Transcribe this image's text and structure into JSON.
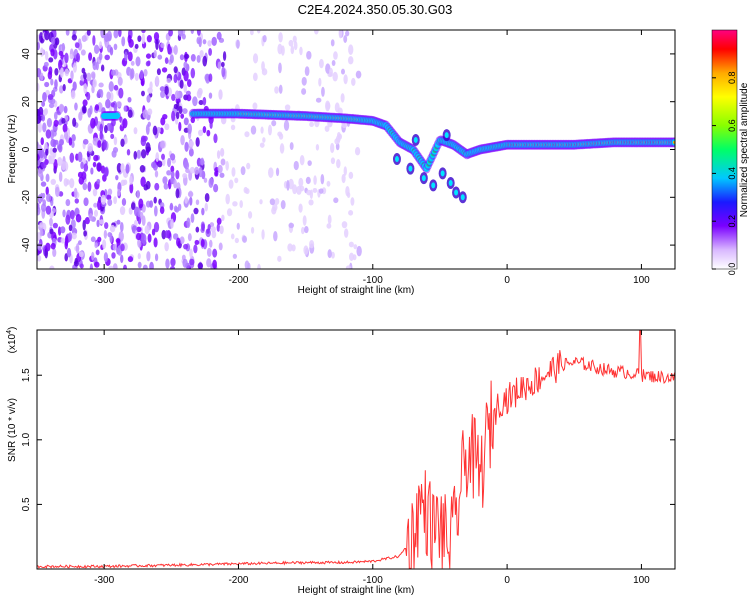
{
  "title": "C2E4.2024.350.05.30.G03",
  "chart_data": [
    {
      "type": "heatmap",
      "xlabel": "Height of straight line (km)",
      "ylabel": "Frequency (Hz)",
      "xlim": [
        -350,
        125
      ],
      "ylim": [
        -50,
        50
      ],
      "xticks": [
        -300,
        -200,
        -100,
        0,
        100
      ],
      "yticks": [
        -40,
        -20,
        0,
        20,
        40
      ],
      "colorbar": {
        "label": "Normalized spectral amplitude",
        "range": [
          0,
          1
        ],
        "ticks": [
          "0.0",
          "0.2",
          "0.4",
          "0.6",
          "0.8"
        ],
        "colors": [
          "#ffffff",
          "#b98cff",
          "#6a00ff",
          "#0033ff",
          "#00e5ff",
          "#00ff66",
          "#88ff00",
          "#ffff00",
          "#ffaa00",
          "#ff0000",
          "#ff0080"
        ]
      },
      "signal_track": {
        "x": [
          -300,
          -230,
          -200,
          -150,
          -120,
          -100,
          -90,
          -80,
          -70,
          -60,
          -50,
          -40,
          -30,
          -20,
          -10,
          0,
          20,
          50,
          80,
          100,
          125
        ],
        "y": [
          14,
          15,
          15,
          14,
          13,
          12,
          10,
          3,
          0,
          -8,
          4,
          2,
          -2,
          0,
          1,
          2,
          2,
          2,
          3,
          3,
          3
        ]
      },
      "noise_region": {
        "x_range": [
          -350,
          -110
        ],
        "y_range": [
          -50,
          50
        ]
      }
    },
    {
      "type": "line",
      "xlabel": "Height of straight line (km)",
      "ylabel": "SNR (10 * v/v)",
      "y_scale_note": "(x10",
      "y_scale_exp": "4",
      "xlim": [
        -350,
        125
      ],
      "ylim": [
        0,
        1.85
      ],
      "xticks": [
        -300,
        -200,
        -100,
        0,
        100
      ],
      "yticks": [
        "0.5",
        "1.0",
        "1.5"
      ],
      "series": [
        {
          "color": "#ff3333",
          "x": [
            -350,
            -300,
            -250,
            -200,
            -150,
            -120,
            -100,
            -90,
            -80,
            -70,
            -65,
            -60,
            -55,
            -50,
            -45,
            -40,
            -35,
            -30,
            -25,
            -20,
            -15,
            -10,
            -5,
            0,
            5,
            10,
            20,
            30,
            40,
            50,
            60,
            70,
            80,
            90,
            100,
            110,
            125
          ],
          "y": [
            0.02,
            0.02,
            0.03,
            0.04,
            0.05,
            0.05,
            0.06,
            0.08,
            0.1,
            0.25,
            0.5,
            0.45,
            0.3,
            0.35,
            0.2,
            0.25,
            0.6,
            0.9,
            0.85,
            0.7,
            1.0,
            1.2,
            1.3,
            1.32,
            1.35,
            1.4,
            1.45,
            1.52,
            1.58,
            1.6,
            1.58,
            1.55,
            1.53,
            1.52,
            1.5,
            1.49,
            1.48
          ]
        }
      ]
    }
  ]
}
